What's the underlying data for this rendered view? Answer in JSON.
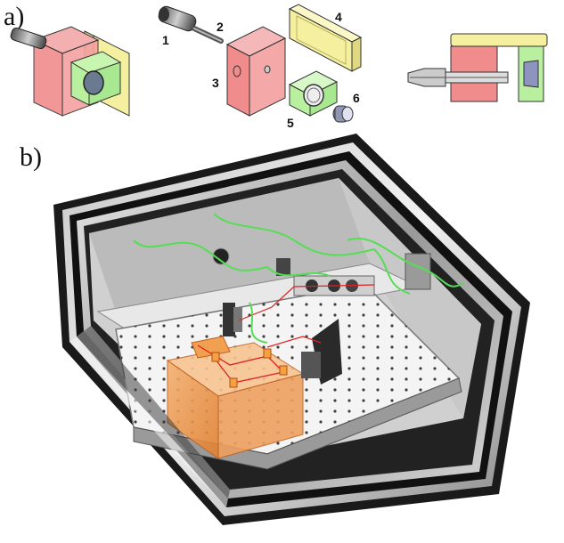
{
  "panels": {
    "a": {
      "label": "a)"
    },
    "b": {
      "label": "b)"
    }
  },
  "part_labels": [
    "1",
    "2",
    "3",
    "4",
    "5",
    "6"
  ],
  "colors": {
    "red_block": "#f08c8c",
    "yellow_plate": "#f5f0a0",
    "green_mount": "#b8f0a0",
    "orange_block": "#f0a050",
    "fiber_green": "#55dd55",
    "laser_red": "#e02020"
  },
  "icons": [
    "fiber-connector-icon",
    "fiber-ferrule-icon",
    "lens-mount-icon",
    "lens-icon"
  ]
}
